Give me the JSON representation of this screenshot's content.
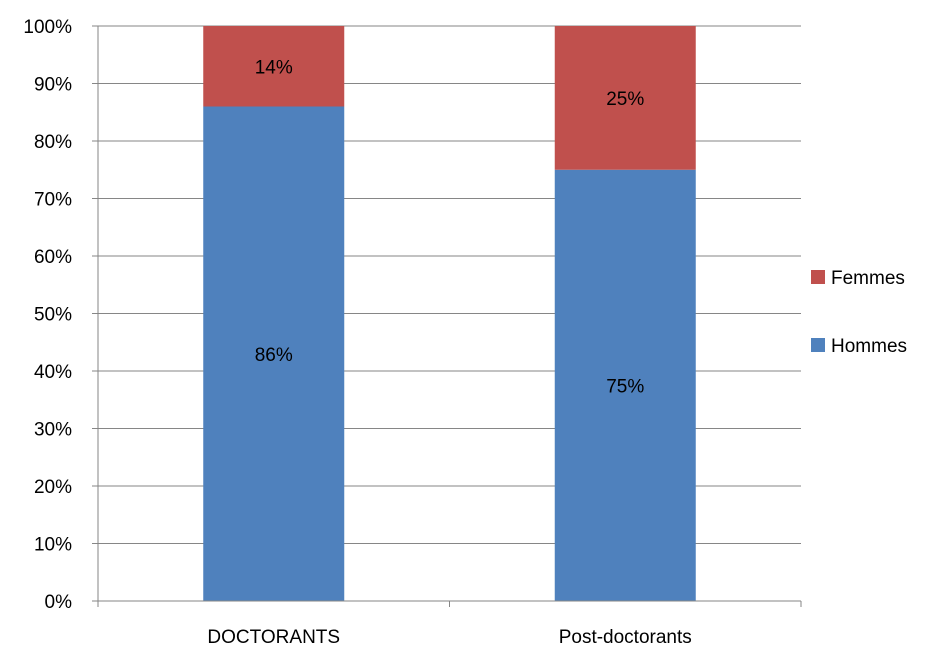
{
  "chart_data": {
    "type": "bar",
    "stacked": true,
    "percent_stacked": true,
    "categories": [
      "DOCTORANTS",
      "Post-doctorants"
    ],
    "series": [
      {
        "name": "Hommes",
        "values": [
          86,
          75
        ],
        "labels": [
          "86%",
          "75%"
        ],
        "color": "#4f81bd"
      },
      {
        "name": "Femmes",
        "values": [
          14,
          25
        ],
        "labels": [
          "14%",
          "25%"
        ],
        "color": "#c0504d"
      }
    ],
    "yticks": [
      "0%",
      "10%",
      "20%",
      "30%",
      "40%",
      "50%",
      "60%",
      "70%",
      "80%",
      "90%",
      "100%"
    ],
    "ylim": [
      0,
      100
    ],
    "grid": true,
    "legend_position": "right",
    "title": "",
    "xlabel": "",
    "ylabel": "",
    "colors": {
      "gridline": "#868686",
      "axis": "#868686"
    }
  }
}
